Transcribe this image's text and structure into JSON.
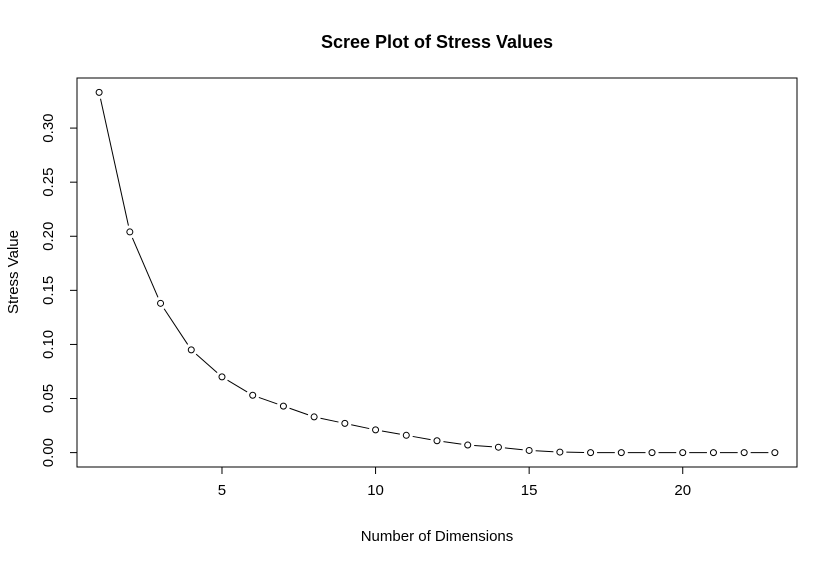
{
  "chart_data": {
    "type": "line",
    "title": "Scree Plot of Stress Values",
    "xlabel": "Number of Dimensions",
    "ylabel": "Stress Value",
    "x": [
      1,
      2,
      3,
      4,
      5,
      6,
      7,
      8,
      9,
      10,
      11,
      12,
      13,
      14,
      15,
      16,
      17,
      18,
      19,
      20,
      21,
      22,
      23
    ],
    "values": [
      0.333,
      0.204,
      0.138,
      0.095,
      0.07,
      0.053,
      0.043,
      0.033,
      0.027,
      0.021,
      0.016,
      0.011,
      0.007,
      0.005,
      0.002,
      0.0005,
      0.0,
      0.0,
      0.0,
      0.0,
      0.0,
      0.0,
      0.0
    ],
    "xlim": [
      0.28,
      23.72
    ],
    "ylim": [
      -0.0133,
      0.3463
    ],
    "xticks": [
      5,
      10,
      15,
      20
    ],
    "xtick_labels": [
      "5",
      "10",
      "15",
      "20"
    ],
    "yticks": [
      0.0,
      0.05,
      0.1,
      0.15,
      0.2,
      0.25,
      0.3
    ],
    "ytick_labels": [
      "0.00",
      "0.05",
      "0.10",
      "0.15",
      "0.20",
      "0.25",
      "0.30"
    ],
    "grid": false,
    "legend": "none",
    "line_color": "#000000",
    "marker": "open-circle"
  }
}
